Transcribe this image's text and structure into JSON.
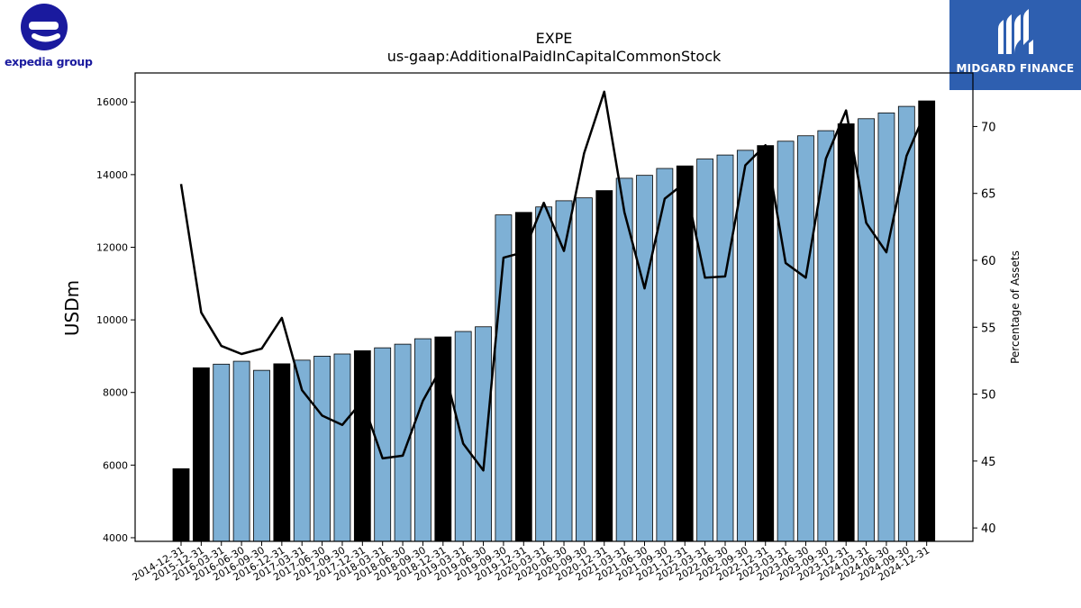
{
  "header": {
    "title": "EXPE",
    "subtitle": "us-gaap:AdditionalPaidInCapitalCommonStock"
  },
  "logos": {
    "left_brand": "expedia group",
    "right_brand": "MIDGARD FINANCE"
  },
  "colors": {
    "bar_quarter": "#7eb0d5",
    "bar_year_end": "#000000",
    "line": "#000000",
    "brand_blue": "#1a1a9e",
    "panel_blue": "#2e5fb0"
  },
  "chart_data": {
    "type": "bar",
    "title": "EXPE",
    "subtitle": "us-gaap:AdditionalPaidInCapitalCommonStock",
    "xlabel": "",
    "ylabel": "USDm",
    "y2label": "Percentage of Assets",
    "ylim": [
      3900,
      16800
    ],
    "y2lim": [
      39,
      74
    ],
    "yticks": [
      4000,
      6000,
      8000,
      10000,
      12000,
      14000,
      16000
    ],
    "y2ticks": [
      40,
      45,
      50,
      55,
      60,
      65,
      70
    ],
    "grid": false,
    "categories": [
      "2014-12-31",
      "2015-12-31",
      "2016-03-31",
      "2016-06-30",
      "2016-09-30",
      "2016-12-31",
      "2017-03-31",
      "2017-06-30",
      "2017-09-30",
      "2017-12-31",
      "2018-03-31",
      "2018-06-30",
      "2018-09-30",
      "2018-12-31",
      "2019-03-31",
      "2019-06-30",
      "2019-09-30",
      "2019-12-31",
      "2020-03-31",
      "2020-06-30",
      "2020-09-30",
      "2020-12-31",
      "2021-03-31",
      "2021-06-30",
      "2021-09-30",
      "2021-12-31",
      "2022-03-31",
      "2022-06-30",
      "2022-09-30",
      "2022-12-31",
      "2023-03-31",
      "2023-06-30",
      "2023-09-30",
      "2023-12-31",
      "2024-03-31",
      "2024-06-30",
      "2024-09-30",
      "2024-12-31"
    ],
    "year_end": [
      true,
      true,
      false,
      false,
      false,
      true,
      false,
      false,
      false,
      true,
      false,
      false,
      false,
      true,
      false,
      false,
      false,
      true,
      false,
      false,
      false,
      true,
      false,
      false,
      false,
      true,
      false,
      false,
      false,
      true,
      false,
      false,
      false,
      true,
      false,
      false,
      false,
      true
    ],
    "series": [
      {
        "type": "bar",
        "values": [
          5900,
          8680,
          8780,
          8860,
          8610,
          8790,
          8890,
          9000,
          9060,
          9150,
          9230,
          9330,
          9480,
          9530,
          9680,
          9810,
          12890,
          12960,
          13110,
          13280,
          13360,
          13560,
          13900,
          13980,
          14170,
          14240,
          14430,
          14540,
          14670,
          14800,
          14920,
          15070,
          15210,
          15400,
          15540,
          15700,
          15880,
          16030
        ]
      },
      {
        "type": "line",
        "axis": "right",
        "values": [
          65.7,
          56.1,
          53.6,
          53.0,
          53.4,
          55.7,
          50.3,
          48.4,
          47.7,
          49.5,
          45.2,
          45.4,
          49.5,
          52.2,
          46.3,
          44.3,
          60.2,
          60.6,
          64.3,
          60.7,
          68.0,
          72.6,
          63.6,
          57.9,
          64.6,
          65.8,
          58.7,
          58.8,
          67.1,
          68.6,
          59.8,
          58.7,
          67.6,
          71.2,
          62.8,
          60.6,
          67.8,
          71.3
        ]
      }
    ]
  }
}
